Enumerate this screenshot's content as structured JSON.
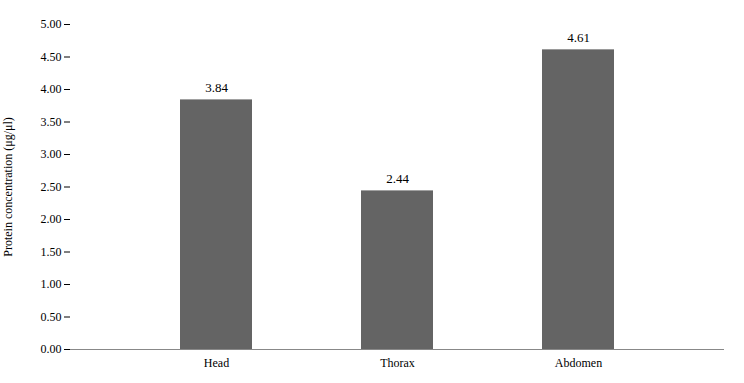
{
  "chart_data": {
    "type": "bar",
    "categories": [
      "Head",
      "Thorax",
      "Abdomen"
    ],
    "values": [
      3.84,
      2.44,
      4.61
    ],
    "color": "#646464",
    "ylabel": "Protein concentration (μg/μl)",
    "ylim": [
      0,
      5.0
    ],
    "yticks": [
      {
        "value": 0.0,
        "label": "0.00"
      },
      {
        "value": 0.5,
        "label": "0.50"
      },
      {
        "value": 1.0,
        "label": "1.00"
      },
      {
        "value": 1.5,
        "label": "1.50"
      },
      {
        "value": 2.0,
        "label": "2.00"
      },
      {
        "value": 2.5,
        "label": "2.50"
      },
      {
        "value": 3.0,
        "label": "3.00"
      },
      {
        "value": 3.5,
        "label": "3.50"
      },
      {
        "value": 4.0,
        "label": "4.00"
      },
      {
        "value": 4.5,
        "label": "4.50"
      },
      {
        "value": 5.0,
        "label": "5.00"
      }
    ],
    "data_labels": true,
    "grid": false
  }
}
